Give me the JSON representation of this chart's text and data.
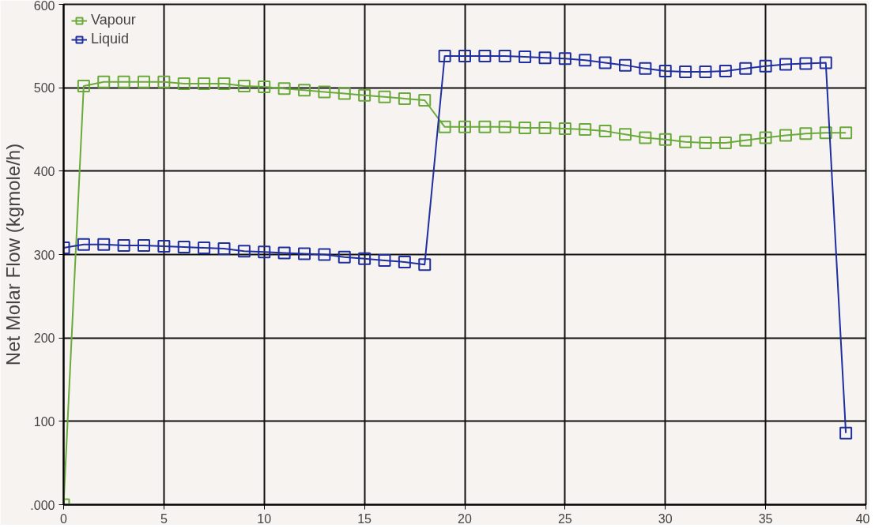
{
  "chart_data": {
    "type": "line",
    "ylabel": "Net Molar Flow (kgmole/h)",
    "x": [
      0,
      1,
      2,
      3,
      4,
      5,
      6,
      7,
      8,
      9,
      10,
      11,
      12,
      13,
      14,
      15,
      16,
      17,
      18,
      19,
      20,
      21,
      22,
      23,
      24,
      25,
      26,
      27,
      28,
      29,
      30,
      31,
      32,
      33,
      34,
      35,
      36,
      37,
      38,
      39
    ],
    "series": [
      {
        "name": "Vapour",
        "color": "#6aaa3a",
        "values": [
          0,
          502,
          507,
          507,
          507,
          507,
          505,
          505,
          505,
          502,
          501,
          499,
          497,
          495,
          493,
          491,
          489,
          487,
          485,
          453,
          453,
          453,
          453,
          452,
          452,
          451,
          450,
          448,
          444,
          440,
          438,
          435,
          434,
          434,
          437,
          440,
          443,
          445,
          446,
          446
        ]
      },
      {
        "name": "Liquid",
        "color": "#1f2f9f",
        "values": [
          308,
          312,
          312,
          311,
          311,
          310,
          309,
          308,
          307,
          304,
          303,
          302,
          301,
          300,
          297,
          295,
          293,
          291,
          288,
          538,
          538,
          538,
          538,
          537,
          536,
          535,
          533,
          530,
          527,
          523,
          520,
          519,
          519,
          520,
          523,
          526,
          528,
          529,
          530,
          86
        ]
      }
    ],
    "xlim": [
      0,
      40
    ],
    "xticks": [
      0,
      5,
      10,
      15,
      20,
      25,
      30,
      35,
      40
    ],
    "ylim": [
      0,
      600
    ],
    "yticks": [
      {
        "value": 0,
        "label": ".000"
      },
      100,
      200,
      300,
      400,
      500,
      600
    ],
    "grid": true,
    "legend": "top left",
    "marker": "square",
    "line_style": "solid"
  }
}
